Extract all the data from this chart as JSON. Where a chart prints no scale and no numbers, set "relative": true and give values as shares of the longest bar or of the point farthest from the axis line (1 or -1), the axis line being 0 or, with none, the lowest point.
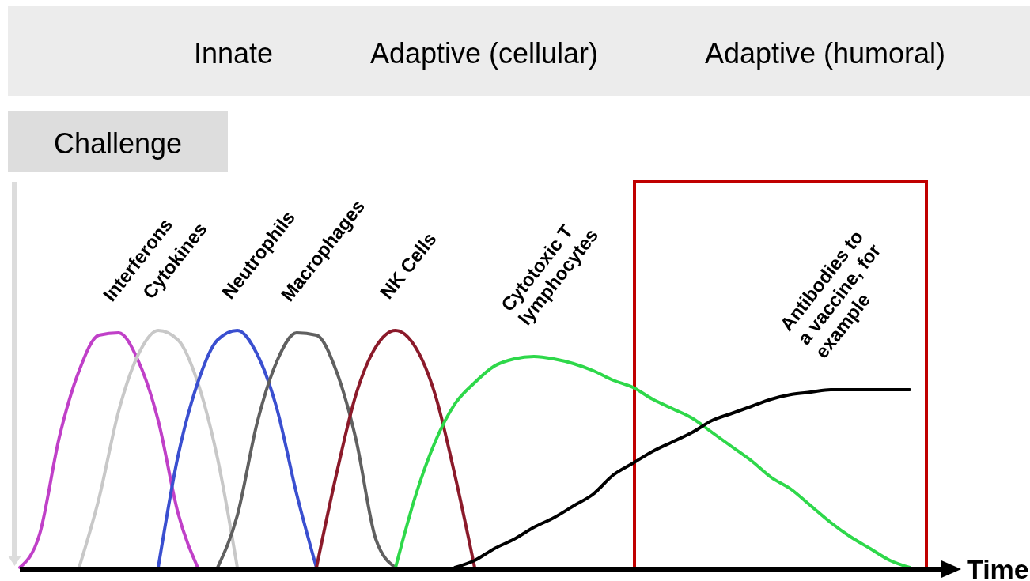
{
  "chart_data": {
    "type": "line",
    "relative": true,
    "xlabel": "Time",
    "line_style": "solid",
    "annotations": [
      "Innate",
      "Adaptive (cellular)",
      "Adaptive (humoral)",
      "Challenge"
    ],
    "categories": [
      null,
      null,
      null,
      null,
      null,
      null,
      null,
      null,
      null,
      null,
      null,
      null,
      null,
      null,
      null,
      null,
      null,
      null,
      null,
      null,
      null,
      null,
      null,
      null,
      null,
      null,
      null,
      null,
      null,
      null,
      null,
      null,
      null,
      null,
      null,
      null,
      null,
      null,
      null,
      null,
      null,
      null,
      null,
      null,
      null,
      null,
      null
    ],
    "series": [
      {
        "name": "Interferons",
        "color": "#c040c8",
        "values": [
          0,
          0.14,
          0.55,
          0.83,
          0.98,
          0.99,
          0.87,
          0.62,
          0.23,
          0,
          null,
          null,
          null,
          null,
          null,
          null,
          null,
          null,
          null,
          null,
          null,
          null,
          null,
          null,
          null,
          null,
          null,
          null,
          null,
          null,
          null,
          null,
          null,
          null,
          null,
          null,
          null,
          null,
          null,
          null,
          null,
          null,
          null,
          null,
          null,
          null,
          null
        ]
      },
      {
        "name": "Cytokines",
        "color": "#c8c8c8",
        "values": [
          null,
          null,
          null,
          0,
          0.29,
          0.66,
          0.9,
          1.0,
          0.96,
          0.78,
          0.46,
          0,
          null,
          null,
          null,
          null,
          null,
          null,
          null,
          null,
          null,
          null,
          null,
          null,
          null,
          null,
          null,
          null,
          null,
          null,
          null,
          null,
          null,
          null,
          null,
          null,
          null,
          null,
          null,
          null,
          null,
          null,
          null,
          null,
          null,
          null,
          null
        ]
      },
      {
        "name": "Neutrophils",
        "color": "#3a4fd0",
        "values": [
          null,
          null,
          null,
          null,
          null,
          null,
          null,
          0,
          0.47,
          0.78,
          0.96,
          1.0,
          0.9,
          0.67,
          0.31,
          0,
          null,
          null,
          null,
          null,
          null,
          null,
          null,
          null,
          null,
          null,
          null,
          null,
          null,
          null,
          null,
          null,
          null,
          null,
          null,
          null,
          null,
          null,
          null,
          null,
          null,
          null,
          null,
          null,
          null,
          null,
          null
        ]
      },
      {
        "name": "Macrophages",
        "color": "#606060",
        "values": [
          null,
          null,
          null,
          null,
          null,
          null,
          null,
          null,
          null,
          null,
          0,
          0.22,
          0.61,
          0.87,
          0.99,
          0.98,
          0.83,
          0.54,
          0.12,
          0,
          null,
          null,
          null,
          null,
          null,
          null,
          null,
          null,
          null,
          null,
          null,
          null,
          null,
          null,
          null,
          null,
          null,
          null,
          null,
          null,
          null,
          null,
          null,
          null,
          null,
          null,
          null
        ]
      },
      {
        "name": "NK Cells",
        "color": "#8b1a2a",
        "values": [
          null,
          null,
          null,
          null,
          null,
          null,
          null,
          null,
          null,
          null,
          null,
          null,
          null,
          null,
          null,
          0,
          0.39,
          0.73,
          0.93,
          1.0,
          0.93,
          0.73,
          0.39,
          0,
          null,
          null,
          null,
          null,
          null,
          null,
          null,
          null,
          null,
          null,
          null,
          null,
          null,
          null,
          null,
          null,
          null,
          null,
          null,
          null,
          null,
          null,
          null
        ]
      },
      {
        "name": "Cytotoxic T lymphocytes",
        "color": "#2ed84a",
        "values": [
          null,
          null,
          null,
          null,
          null,
          null,
          null,
          null,
          null,
          null,
          null,
          null,
          null,
          null,
          null,
          null,
          null,
          null,
          null,
          0,
          0.3,
          0.53,
          0.69,
          0.78,
          0.85,
          0.88,
          0.89,
          0.88,
          0.86,
          0.83,
          0.79,
          0.76,
          0.71,
          0.67,
          0.63,
          0.57,
          0.51,
          0.45,
          0.38,
          0.33,
          0.26,
          0.19,
          0.13,
          0.08,
          0.03,
          0,
          null
        ]
      },
      {
        "name": "Antibodies to a vaccine, for example",
        "color": "#000000",
        "values": [
          null,
          null,
          null,
          null,
          null,
          null,
          null,
          null,
          null,
          null,
          null,
          null,
          null,
          null,
          null,
          null,
          null,
          null,
          null,
          null,
          null,
          null,
          0,
          0.03,
          0.08,
          0.12,
          0.17,
          0.21,
          0.26,
          0.31,
          0.39,
          0.44,
          0.49,
          0.53,
          0.57,
          0.62,
          0.65,
          0.68,
          0.71,
          0.73,
          0.74,
          0.75,
          0.75,
          0.75,
          0.75,
          0.75,
          null
        ]
      }
    ]
  }
}
